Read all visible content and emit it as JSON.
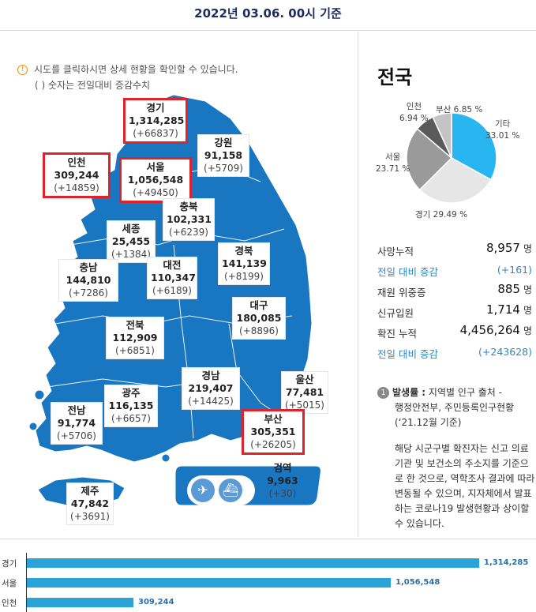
{
  "header": {
    "title": "2022년 03.06. 00시 기준"
  },
  "notice": {
    "line1": "시도를 클릭하시면 상세 현황을 확인할 수 있습니다.",
    "line2": "( ) 숫자는 전일대비 증감수치"
  },
  "regions": {
    "gyeonggi": {
      "name": "경기",
      "count": "1,314,285",
      "delta": "(+66837)"
    },
    "gangwon": {
      "name": "강원",
      "count": "91,158",
      "delta": "(+5709)"
    },
    "incheon": {
      "name": "인천",
      "count": "309,244",
      "delta": "(+14859)"
    },
    "seoul": {
      "name": "서울",
      "count": "1,056,548",
      "delta": "(+49450)"
    },
    "chungbuk": {
      "name": "충북",
      "count": "102,331",
      "delta": "(+6239)"
    },
    "sejong": {
      "name": "세종",
      "count": "25,455",
      "delta": "(+1384)"
    },
    "chungnam": {
      "name": "충남",
      "count": "144,810",
      "delta": "(+7286)"
    },
    "daejeon": {
      "name": "대전",
      "count": "110,347",
      "delta": "(+6189)"
    },
    "gyeongbuk": {
      "name": "경북",
      "count": "141,139",
      "delta": "(+8199)"
    },
    "daegu": {
      "name": "대구",
      "count": "180,085",
      "delta": "(+8896)"
    },
    "jeonbuk": {
      "name": "전북",
      "count": "112,909",
      "delta": "(+6851)"
    },
    "gyeongnam": {
      "name": "경남",
      "count": "219,407",
      "delta": "(+14425)"
    },
    "ulsan": {
      "name": "울산",
      "count": "77,481",
      "delta": "(+5015)"
    },
    "gwangju": {
      "name": "광주",
      "count": "116,135",
      "delta": "(+6657)"
    },
    "jeonnam": {
      "name": "전남",
      "count": "91,774",
      "delta": "(+5706)"
    },
    "busan": {
      "name": "부산",
      "count": "305,351",
      "delta": "(+26205)"
    },
    "jeju": {
      "name": "제주",
      "count": "47,842",
      "delta": "(+3691)"
    },
    "quarantine": {
      "name": "검역",
      "count": "9,963",
      "delta": "(+30)"
    }
  },
  "transport": {
    "airport_icon": "airplane-icon",
    "port_icon": "ship-icon"
  },
  "side": {
    "title": "전국",
    "pie": [
      {
        "label": "기타",
        "pct": "33.01 %",
        "value": 33.01,
        "color": "#29b6f0"
      },
      {
        "label": "경기",
        "pct": "29.49 %",
        "value": 29.49,
        "color": "#e6e6e6"
      },
      {
        "label": "서울",
        "pct": "23.71 %",
        "value": 23.71,
        "color": "#9a9a9a"
      },
      {
        "label": "인천",
        "pct": "6.94 %",
        "value": 6.94,
        "color": "#5a5a5a"
      },
      {
        "label": "부산",
        "pct": "6.85 %",
        "value": 6.85,
        "color": "#c4c4c4"
      }
    ],
    "stats": {
      "deaths_label": "사망누적",
      "deaths_value": "8,957",
      "unit": "명",
      "deaths_delta_label": "전일 대비 증감",
      "deaths_delta": "(+161)",
      "critical_label": "재원 위중증",
      "critical_value": "885",
      "new_admit_label": "신규입원",
      "new_admit_value": "1,714",
      "confirmed_label": "확진 누적",
      "confirmed_value": "4,456,264",
      "confirmed_delta_label": "전일 대비 증감",
      "confirmed_delta": "(+243628)"
    },
    "source": {
      "badge": "1",
      "title": "발생률 :",
      "text1": " 지역별 인구 출처 -",
      "text2": "행정안전부, 주민등록인구현황",
      "text3": "(‘21.12월 기준)",
      "note": "해당 시군구별 확진자는 신고 의료기관 및 보건소의 주소지를 기준으로 한 것으로, 역학조사 결과에 따라 변동될 수 있으며, 지자체에서 발표하는 코로나19 발생현황과 상이할 수 있습니다."
    }
  },
  "bars": [
    {
      "label": "경기",
      "value": 1314285,
      "display": "1,314,285"
    },
    {
      "label": "서울",
      "value": 1056548,
      "display": "1,056,548"
    },
    {
      "label": "인천",
      "value": 309244,
      "display": "309,244"
    }
  ]
}
